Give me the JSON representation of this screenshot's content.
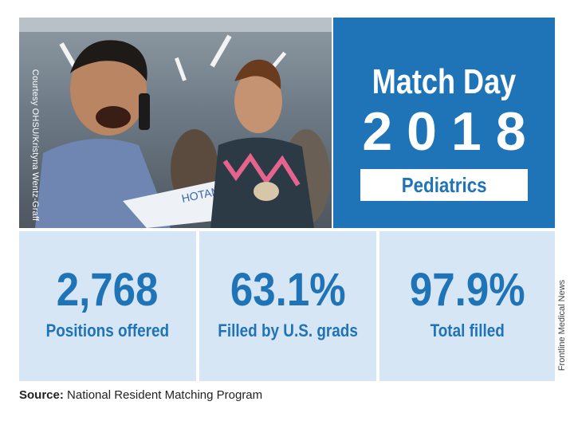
{
  "photo": {
    "credit": "Courtesy OHSU/Kristyna Wentz-Graff",
    "paper_text": "HOTAM"
  },
  "title": {
    "line1": "Match Day",
    "line2": "2018",
    "specialty": "Pediatrics"
  },
  "stats": [
    {
      "value": "2,768",
      "label": "Positions offered"
    },
    {
      "value": "63.1%",
      "label": "Filled by U.S. grads"
    },
    {
      "value": "97.9%",
      "label": "Total filled"
    }
  ],
  "side_credit": "Frontline Medical News",
  "source": {
    "label": "Source:",
    "text": " National Resident Matching Program"
  },
  "colors": {
    "brand_blue": "#1f73b7",
    "stat_bg": "#d6e6f5"
  }
}
